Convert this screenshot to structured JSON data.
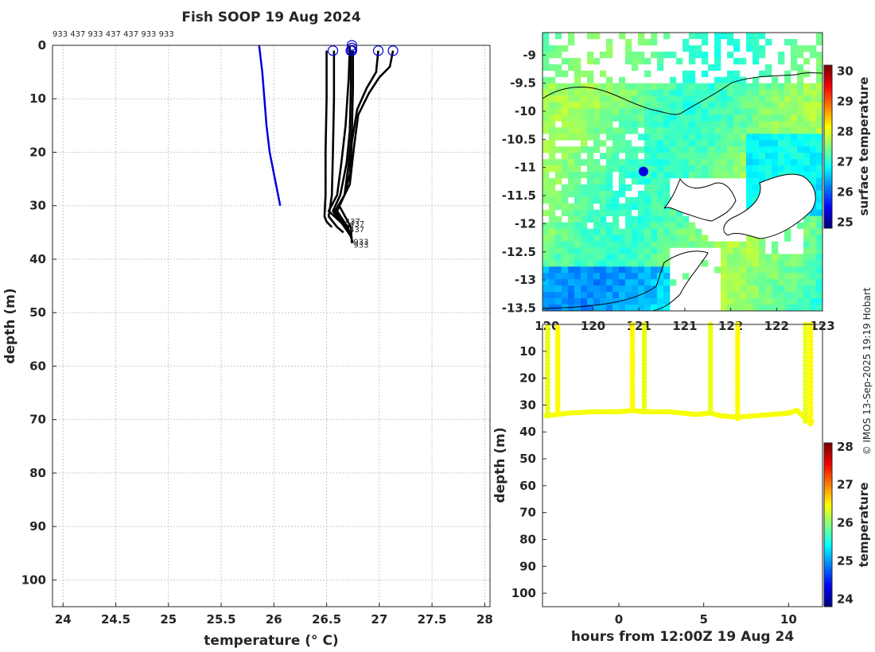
{
  "title": "Fish SOOP 19 Aug 2024",
  "profile_ids_text": "933 437 933 437 437 933 933",
  "credit": "© IMOS 13-Sep-2025 19:19 Hobart",
  "colors": {
    "reference": "#0000dd",
    "profiles": "#000000",
    "depth_points": "#e6e60a"
  },
  "chart_data": [
    {
      "id": "profiles",
      "type": "line",
      "xlabel": "temperature (° C)",
      "ylabel": "depth (m)",
      "xlim": [
        23.9,
        28.05
      ],
      "ylim": [
        105,
        0
      ],
      "y_reversed": true,
      "grid": true,
      "xticks": [
        24,
        24.5,
        25,
        25.5,
        26,
        26.5,
        27,
        27.5,
        28
      ],
      "xtick_labels": [
        "24",
        "24.5",
        "25",
        "25.5",
        "26",
        "26.5",
        "27",
        "27.5",
        "28"
      ],
      "yticks": [
        0,
        10,
        20,
        30,
        40,
        50,
        60,
        70,
        80,
        90,
        100
      ],
      "ytick_labels": [
        "0",
        "10",
        "20",
        "30",
        "40",
        "50",
        "60",
        "70",
        "80",
        "90",
        "100"
      ],
      "reference_profile": {
        "x": [
          25.86,
          25.89,
          25.93,
          25.96,
          26.06
        ],
        "y": [
          0,
          5,
          15,
          20,
          30
        ]
      },
      "series": [
        {
          "x": [
            26.5,
            26.5,
            26.49,
            26.49,
            26.48,
            26.5,
            26.55
          ],
          "y": [
            1,
            10,
            20,
            28,
            32,
            33,
            34
          ]
        },
        {
          "x": [
            26.57,
            26.57,
            26.56,
            26.55,
            26.52,
            26.6,
            26.66
          ],
          "y": [
            1,
            10,
            20,
            28,
            32,
            34,
            35
          ]
        },
        {
          "x": [
            26.72,
            26.71,
            26.68,
            26.64,
            26.6,
            26.52,
            26.63,
            26.72
          ],
          "y": [
            0,
            6,
            15,
            22,
            28,
            31,
            33,
            34
          ]
        },
        {
          "x": [
            26.73,
            26.73,
            26.72,
            26.69,
            26.63,
            26.56,
            26.67,
            26.74
          ],
          "y": [
            1,
            8,
            16,
            22,
            28,
            31,
            34,
            36
          ]
        },
        {
          "x": [
            26.75,
            26.75,
            26.74,
            26.71,
            26.67,
            26.6,
            26.7,
            26.75
          ],
          "y": [
            1,
            8,
            16,
            22,
            28,
            31,
            34,
            37
          ]
        },
        {
          "x": [
            26.99,
            26.97,
            26.88,
            26.79,
            26.74,
            26.72,
            26.67,
            26.58,
            26.69,
            26.74
          ],
          "y": [
            1,
            5,
            8,
            12,
            18,
            24,
            28,
            31,
            34,
            36
          ]
        },
        {
          "x": [
            27.13,
            27.1,
            27.0,
            26.9,
            26.8,
            26.76,
            26.72,
            26.62,
            26.73,
            26.74
          ],
          "y": [
            1,
            4,
            6,
            9,
            13,
            19,
            26,
            30,
            34,
            37
          ]
        }
      ],
      "surface_markers": {
        "x": [
          26.56,
          26.74,
          26.74,
          26.73,
          26.74,
          26.99,
          27.13
        ],
        "y": [
          1,
          0,
          0.5,
          1,
          1,
          1,
          1
        ]
      },
      "end_labels": [
        {
          "text": "437",
          "x": 26.66,
          "y": 33
        },
        {
          "text": "437",
          "x": 26.7,
          "y": 33.5
        },
        {
          "text": "437",
          "x": 26.7,
          "y": 34.5
        },
        {
          "text": "933",
          "x": 26.74,
          "y": 36.8
        },
        {
          "text": "933",
          "x": 26.74,
          "y": 37.4
        }
      ]
    },
    {
      "id": "map",
      "type": "heatmap",
      "colorbar_label": "surface temperature",
      "colorbar_ticks": [
        25,
        26,
        27,
        28,
        29,
        30
      ],
      "clim": [
        24.8,
        30.2
      ],
      "xlim": [
        119.95,
        123.0
      ],
      "ylim": [
        -13.55,
        -8.6
      ],
      "xticks": [
        120,
        120.5,
        121,
        121.5,
        122,
        122.5,
        123
      ],
      "xtick_labels": [
        "120",
        "120",
        "121",
        "121",
        "122",
        "122",
        "123"
      ],
      "yticks": [
        -9,
        -9.5,
        -10,
        -10.5,
        -11,
        -11.5,
        -12,
        -12.5,
        -13,
        -13.5
      ],
      "ytick_labels": [
        "-9",
        "-9.5",
        "-10",
        "-10.5",
        "-11",
        "-11.5",
        "-12",
        "-12.5",
        "-13",
        "-13.5"
      ],
      "track_point": {
        "lon": 121.05,
        "lat": -11.07
      }
    },
    {
      "id": "time_depth",
      "type": "scatter",
      "xlabel": "hours from 12:00Z 19 Aug 24",
      "ylabel": "depth (m)",
      "colorbar_label": "temperature",
      "colorbar_ticks": [
        24,
        25,
        26,
        27,
        28
      ],
      "clim": [
        23.8,
        28.1
      ],
      "xlim": [
        -4.5,
        12
      ],
      "ylim": [
        105,
        0
      ],
      "y_reversed": true,
      "xticks": [
        0,
        5,
        10
      ],
      "xtick_labels": [
        "0",
        "5",
        "10"
      ],
      "yticks": [
        10,
        20,
        30,
        40,
        50,
        60,
        70,
        80,
        90,
        100
      ],
      "ytick_labels": [
        "10",
        "20",
        "30",
        "40",
        "50",
        "60",
        "70",
        "80",
        "90",
        "100"
      ],
      "bottom_trace": {
        "x": [
          -4.3,
          -3.0,
          -1.5,
          0.0,
          0.8,
          1.5,
          3.0,
          4.5,
          5.4,
          6.0,
          7.0,
          8.0,
          9.0,
          10.0,
          10.5,
          11.0,
          11.4
        ],
        "y": [
          34,
          33,
          32.5,
          32.5,
          32,
          32.5,
          32.5,
          33.5,
          33,
          34,
          34.5,
          34,
          33.5,
          33,
          32,
          35,
          36
        ]
      },
      "vertical_casts": [
        {
          "x": -4.2,
          "top": 1,
          "bottom": 34,
          "temp": 26.4
        },
        {
          "x": -3.6,
          "top": 1,
          "bottom": 33,
          "temp": 26.5
        },
        {
          "x": 0.8,
          "top": 0,
          "bottom": 32,
          "temp": 26.5
        },
        {
          "x": 1.5,
          "top": 0,
          "bottom": 32,
          "temp": 26.4
        },
        {
          "x": 5.4,
          "top": 0,
          "bottom": 33,
          "temp": 26.4
        },
        {
          "x": 7.0,
          "top": 0,
          "bottom": 35,
          "temp": 26.5
        },
        {
          "x": 11.0,
          "top": 0,
          "bottom": 36,
          "temp": 26.4
        },
        {
          "x": 11.3,
          "top": 0,
          "bottom": 37,
          "temp": 26.5
        }
      ]
    }
  ]
}
